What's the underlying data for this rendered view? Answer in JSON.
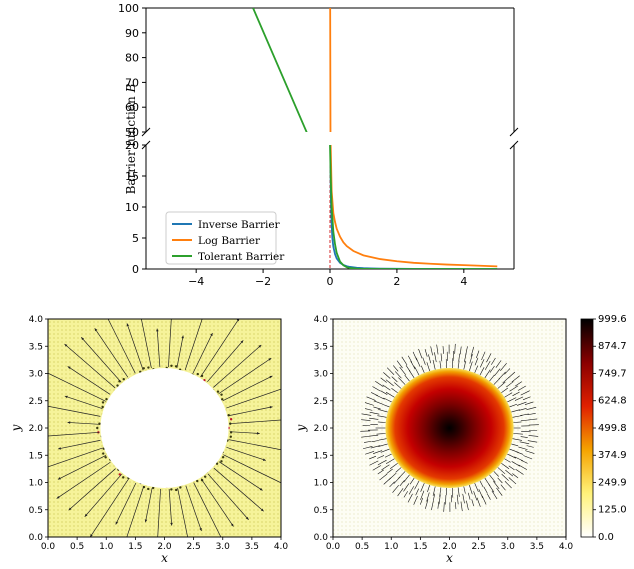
{
  "chart_data": [
    {
      "type": "line",
      "ylabel_text": "Barrier function ",
      "ylabel_var": "B",
      "xlim": [
        -5.5,
        5.5
      ],
      "ylim_lower": [
        0,
        20
      ],
      "ylim_upper": [
        50,
        100
      ],
      "broken_y_axis": true,
      "x_ticks": [
        "−4",
        "−2",
        "0",
        "2",
        "4"
      ],
      "x_tick_values": [
        -4,
        -2,
        0,
        2,
        4
      ],
      "y_ticks_lower": [
        "0",
        "5",
        "10",
        "15",
        "20"
      ],
      "y_tick_values_lower": [
        0,
        5,
        10,
        15,
        20
      ],
      "y_ticks_upper": [
        "50",
        "60",
        "70",
        "80",
        "90",
        "100"
      ],
      "y_tick_values_upper": [
        50,
        60,
        70,
        80,
        90,
        100
      ],
      "vline_x": 0,
      "vline_color": "#d62728",
      "legend_placement": "lower-left",
      "series": [
        {
          "name": "Inverse Barrier",
          "color": "#1f77b4",
          "x": [
            0.01,
            0.02,
            0.03,
            0.05,
            0.07,
            0.1,
            0.15,
            0.2,
            0.3,
            0.4,
            0.5,
            0.6,
            0.8,
            1.0,
            1.2,
            1.5,
            2.0,
            2.5,
            3.0,
            4.0,
            5.0
          ],
          "y": [
            20,
            14,
            10.5,
            7.0,
            5.0,
            3.6,
            2.4,
            1.7,
            1.0,
            0.65,
            0.45,
            0.33,
            0.2,
            0.13,
            0.09,
            0.06,
            0.03,
            0.02,
            0.01,
            0.0,
            0.0
          ]
        },
        {
          "name": "Log Barrier",
          "color": "#ff7f0e",
          "x": [
            0.005,
            0.02,
            0.05,
            0.1,
            0.15,
            0.2,
            0.3,
            0.4,
            0.5,
            0.7,
            1.0,
            1.5,
            2.0,
            2.5,
            3.0,
            3.5,
            4.0,
            4.5,
            5.0
          ],
          "y": [
            100,
            20,
            12.5,
            9.0,
            7.6,
            6.5,
            5.2,
            4.3,
            3.7,
            2.9,
            2.2,
            1.6,
            1.25,
            1.0,
            0.85,
            0.72,
            0.62,
            0.52,
            0.42
          ]
        },
        {
          "name": "Tolerant Barrier",
          "color": "#2ca02c",
          "x": [
            -2.3,
            -0.7,
            0.0,
            0.02,
            0.05,
            0.1,
            0.15,
            0.2,
            0.3,
            0.4,
            0.5,
            0.6,
            0.8,
            1.0,
            1.5,
            2.0,
            5.0
          ],
          "y": [
            100,
            50,
            20,
            15,
            10,
            6.0,
            4.0,
            2.6,
            1.2,
            0.6,
            0.3,
            0.15,
            0.05,
            0.02,
            0.0,
            0.0,
            0.0
          ]
        }
      ]
    },
    {
      "type": "quiver",
      "xlabel": "x",
      "ylabel": "y",
      "xlim": [
        0.0,
        4.0
      ],
      "ylim": [
        0.0,
        4.0
      ],
      "x_ticks": [
        "0.0",
        "0.5",
        "1.0",
        "1.5",
        "2.0",
        "2.5",
        "3.0",
        "3.5",
        "4.0"
      ],
      "y_ticks": [
        "0.0",
        "0.5",
        "1.0",
        "1.5",
        "2.0",
        "2.5",
        "3.0",
        "3.5",
        "4.0"
      ],
      "tick_values": [
        0,
        0.5,
        1.0,
        1.5,
        2.0,
        2.5,
        3.0,
        3.5,
        4.0
      ],
      "background_color": "#f6f39a",
      "disk_center": [
        2.0,
        2.0
      ],
      "disk_radius": 1.1,
      "disk_color": "#ffffff"
    },
    {
      "type": "heatmap",
      "xlabel": "x",
      "ylabel": "y",
      "xlim": [
        0.0,
        4.0
      ],
      "ylim": [
        0.0,
        4.0
      ],
      "x_ticks": [
        "0.0",
        "0.5",
        "1.0",
        "1.5",
        "2.0",
        "2.5",
        "3.0",
        "3.5",
        "4.0"
      ],
      "y_ticks": [
        "0.0",
        "0.5",
        "1.0",
        "1.5",
        "2.0",
        "2.5",
        "3.0",
        "3.5",
        "4.0"
      ],
      "tick_values": [
        0,
        0.5,
        1.0,
        1.5,
        2.0,
        2.5,
        3.0,
        3.5,
        4.0
      ],
      "colorbar_ticks": [
        "0.0",
        "125.0",
        "249.9",
        "374.9",
        "499.8",
        "624.8",
        "749.7",
        "874.7",
        "999.6"
      ],
      "colorbar_values": [
        0.0,
        125.0,
        249.9,
        374.9,
        499.8,
        624.8,
        749.7,
        874.7,
        999.6
      ],
      "colormap": "hot_r",
      "center": [
        2.0,
        2.0
      ],
      "radius": 1.1
    }
  ]
}
